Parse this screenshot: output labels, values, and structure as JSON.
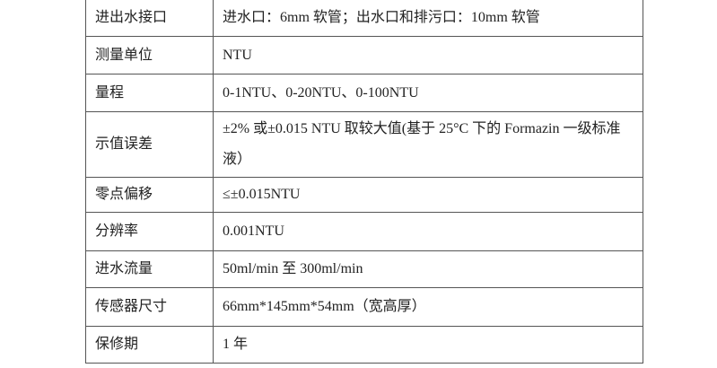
{
  "rows": [
    {
      "label": "进出水接口",
      "value": "进水口：6mm 软管；出水口和排污口：10mm 软管"
    },
    {
      "label": "测量单位",
      "value": "NTU"
    },
    {
      "label": "量程",
      "value": "0-1NTU、0-20NTU、0-100NTU"
    },
    {
      "label": "示值误差",
      "value": "±2% 或±0.015 NTU 取较大值(基于 25°C 下的 Formazin 一级标准液）"
    },
    {
      "label": "零点偏移",
      "value": "≤±0.015NTU"
    },
    {
      "label": "分辨率",
      "value": "0.001NTU"
    },
    {
      "label": "进水流量",
      "value": "50ml/min 至 300ml/min"
    },
    {
      "label": "传感器尺寸",
      "value": "66mm*145mm*54mm（宽高厚）"
    },
    {
      "label": "保修期",
      "value": "1 年"
    }
  ]
}
